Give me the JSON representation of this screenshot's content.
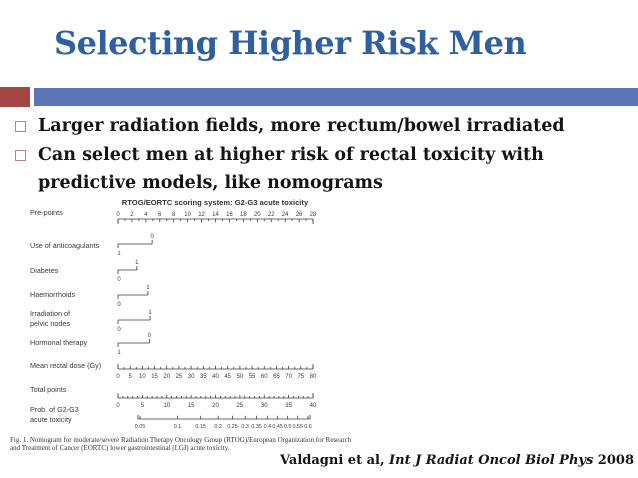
{
  "slide": {
    "title": "Selecting Higher Risk Men",
    "bullets": [
      {
        "lines": [
          "Larger radiation fields, more rectum/bowel irradiated"
        ]
      },
      {
        "lines": [
          "Can select men at higher risk of rectal toxicity with",
          "predictive models, like nomograms"
        ]
      }
    ],
    "citation": {
      "prefix": "Valdagni et al, ",
      "journal": "Int J Radiat Oncol Biol Phys",
      "year": " 2008"
    }
  },
  "colors": {
    "title_blue": "#2e5f9e",
    "bar_blue": "#5b76b6",
    "bar_red": "#a24743",
    "bullet_square": "#c17e7e",
    "body_text": "#141414",
    "figure_ink": "#3a3a3a"
  },
  "figure": {
    "title": "RTOG/EORTC scoring system: G2-G3 acute toxicity",
    "caption_line1": "Fig. 1.  Nomogram for moderate/severe Radiation Therapy Oncology Group (RTOG)/European Organization for Research",
    "caption_line2": "and Treatment of Cancer (EORTC) lower gastrointestinal (LGI) acute toxicity.",
    "chart_data": {
      "type": "nomogram",
      "rows": [
        {
          "kind": "axis",
          "label_lines": [
            "Pre-points"
          ],
          "min": 0,
          "max": 28,
          "ticks": [
            0,
            2,
            4,
            6,
            8,
            10,
            12,
            14,
            16,
            18,
            20,
            22,
            24,
            26,
            28
          ],
          "minors_per_step": 1,
          "label_side": "above"
        },
        {
          "kind": "binary",
          "label_lines": [
            "Use of anticoagulants"
          ],
          "left_label": "1",
          "right_label": "0",
          "length_points": 4.9
        },
        {
          "kind": "binary",
          "label_lines": [
            "Diabetes"
          ],
          "left_label": "0",
          "right_label": "1",
          "length_points": 2.7
        },
        {
          "kind": "binary",
          "label_lines": [
            "Haemorrhoids"
          ],
          "left_label": "0",
          "right_label": "1",
          "length_points": 4.3
        },
        {
          "kind": "binary",
          "label_lines": [
            "Irradiation of",
            "pelvic nodes"
          ],
          "left_label": "0",
          "right_label": "1",
          "length_points": 4.6
        },
        {
          "kind": "binary",
          "label_lines": [
            "Hormonal therapy"
          ],
          "left_label": "1",
          "right_label": "0",
          "length_points": 4.5
        },
        {
          "kind": "axis",
          "label_lines": [
            "Mean rectal dose (Gy)"
          ],
          "min": 0,
          "max": 80,
          "ticks": [
            0,
            5,
            10,
            15,
            20,
            25,
            30,
            35,
            40,
            45,
            50,
            55,
            60,
            65,
            70,
            75,
            80
          ],
          "minors_per_step": 1,
          "label_side": "below"
        },
        {
          "kind": "axis",
          "label_lines": [
            "Total points"
          ],
          "min": 0,
          "max": 40,
          "ticks": [
            0,
            5,
            10,
            15,
            20,
            25,
            30,
            35,
            40
          ],
          "minors_per_step": 4,
          "label_side": "below"
        },
        {
          "kind": "prob",
          "label_lines": [
            "Prob. of G2-G3",
            "acute toxicity"
          ],
          "ticks": [
            0.05,
            0.1,
            0.15,
            0.2,
            0.25,
            0.3,
            0.35,
            0.4,
            0.45,
            0.5,
            0.55,
            0.6
          ],
          "label_side": "below"
        }
      ]
    }
  }
}
